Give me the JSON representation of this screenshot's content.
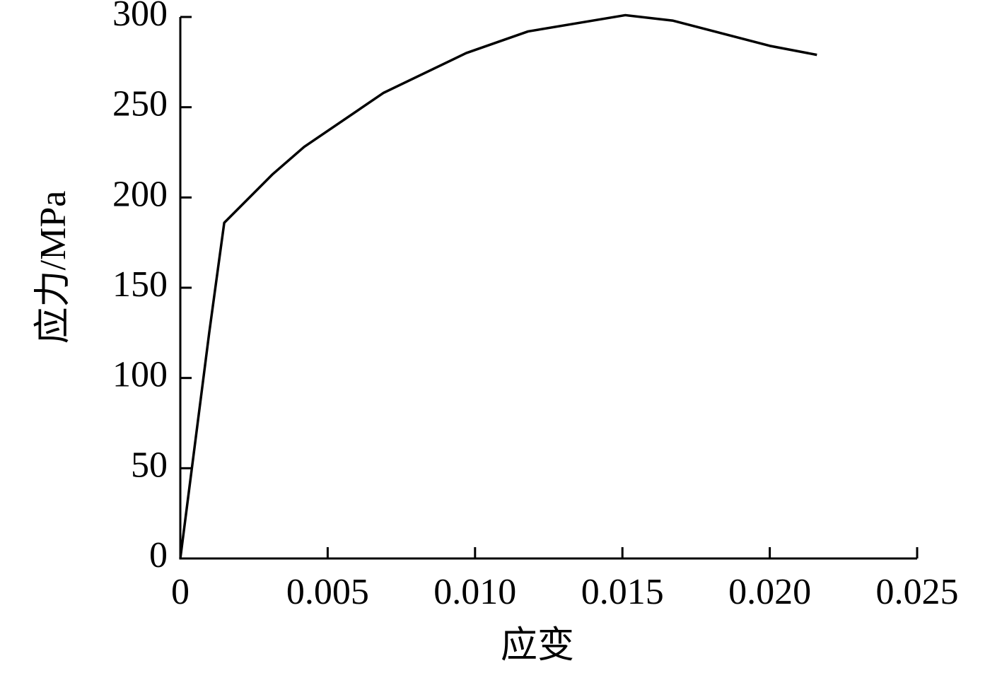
{
  "chart_data": {
    "type": "line",
    "x_label": "应变",
    "y_label": "应力/MPa",
    "x": [
      0,
      0.00098,
      0.00149,
      0.00314,
      0.0042,
      0.0069,
      0.0097,
      0.0118,
      0.0151,
      0.0167,
      0.02,
      0.0216
    ],
    "series": [
      {
        "color": "#000000",
        "values": [
          0,
          125,
          186,
          213,
          228,
          258,
          280,
          292,
          301,
          298,
          284,
          279
        ]
      }
    ],
    "xlim": [
      0,
      0.025
    ],
    "xticks": [
      0,
      0.005,
      {
        "value": 0.01,
        "label": "0.010"
      },
      0.015,
      {
        "value": 0.02,
        "label": "0.020"
      },
      0.025
    ],
    "ylim": [
      0,
      300
    ],
    "yticks": [
      0,
      50,
      100,
      150,
      200,
      250,
      300
    ],
    "grid": false
  }
}
